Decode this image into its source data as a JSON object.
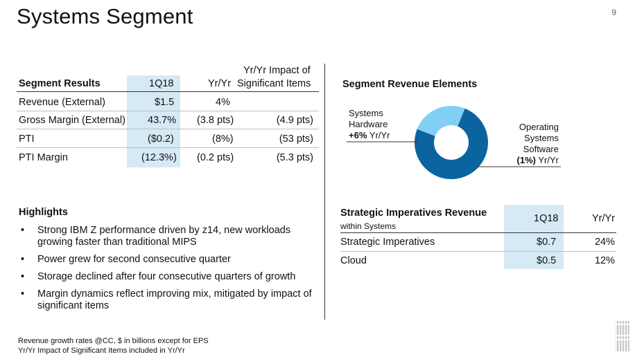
{
  "page": {
    "title": "Systems Segment",
    "page_number": "9"
  },
  "segment_results": {
    "headers": {
      "label": "Segment Results",
      "period": "1Q18",
      "yy": "Yr/Yr",
      "impact_line1": "Yr/Yr Impact of",
      "impact_line2": "Significant Items"
    },
    "rows": [
      {
        "label": "Revenue (External)",
        "period": "$1.5",
        "yy": "4%",
        "impact": ""
      },
      {
        "label": "Gross Margin (External)",
        "period": "43.7%",
        "yy": "(3.8 pts)",
        "impact": "(4.9 pts)"
      },
      {
        "label": "PTI",
        "period": "($0.2)",
        "yy": "(8%)",
        "impact": "(53 pts)"
      },
      {
        "label": "PTI Margin",
        "period": "(12.3%)",
        "yy": "(0.2 pts)",
        "impact": "(5.3 pts)"
      }
    ]
  },
  "segment_revenue_elements": {
    "title": "Segment Revenue Elements",
    "slices": [
      {
        "name_lines": [
          "Systems",
          "Hardware"
        ],
        "change": "+6%",
        "suffix": "Yr/Yr",
        "color": "#0b64a0",
        "share": 0.75
      },
      {
        "name_lines": [
          "Operating",
          "Systems",
          "Software"
        ],
        "change": "(1%)",
        "suffix": "Yr/Yr",
        "color": "#82cff5",
        "share": 0.25
      }
    ]
  },
  "highlights": {
    "title": "Highlights",
    "items": [
      "Strong IBM Z performance driven by z14, new workloads growing faster than traditional MIPS",
      "Power grew for second consecutive quarter",
      "Storage declined after four consecutive quarters of growth",
      "Margin dynamics reflect improving mix, mitigated by impact of significant items"
    ]
  },
  "strategic_imperatives": {
    "title": "Strategic Imperatives Revenue",
    "subtitle": "within Systems",
    "period": "1Q18",
    "yy": "Yr/Yr",
    "rows": [
      {
        "label": "Strategic Imperatives",
        "value": "$0.7",
        "yy": "24%"
      },
      {
        "label": "Cloud",
        "value": "$0.5",
        "yy": "12%"
      }
    ]
  },
  "footnotes": [
    "Revenue growth rates @CC, $ in billions except for EPS",
    "Yr/Yr Impact of Significant Items included in Yr/Yr"
  ],
  "logo": {
    "text": "IBM"
  }
}
